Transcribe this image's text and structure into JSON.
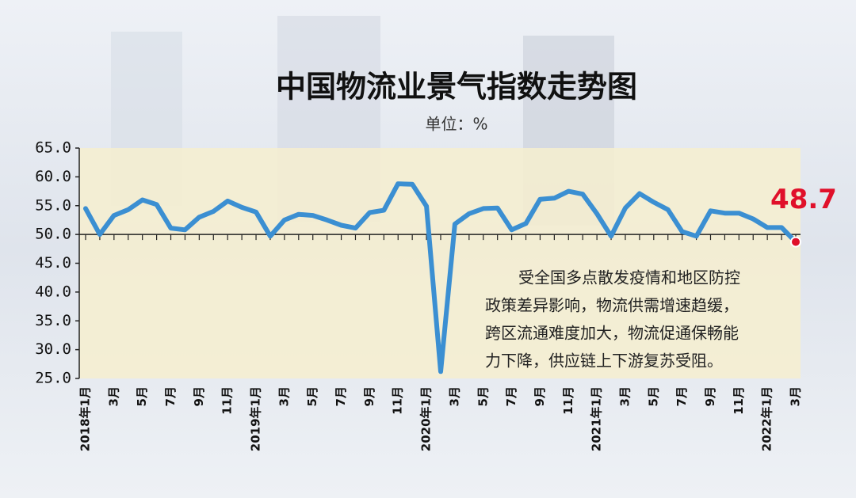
{
  "chart_data": {
    "type": "line",
    "title": "中国物流业景气指数走势图",
    "subtitle": "单位：%",
    "annotation": [
      "受全国多点散发疫情和地区防控",
      "政策差异影响，物流供需增速趋缓，",
      "跨区流通难度加大，物流促通保畅能",
      "力下降，供应链上下游复苏受阻。"
    ],
    "categories": [
      "2018年1月",
      null,
      "3月",
      null,
      "5月",
      null,
      "7月",
      null,
      "9月",
      null,
      "11月",
      null,
      "2019年1月",
      null,
      "3月",
      null,
      "5月",
      null,
      "7月",
      null,
      "9月",
      null,
      "11月",
      null,
      "2020年1月",
      null,
      "3月",
      null,
      "5月",
      null,
      "7月",
      null,
      "9月",
      null,
      "11月",
      null,
      "2021年1月",
      null,
      "3月",
      null,
      "5月",
      null,
      "7月",
      null,
      "9月",
      null,
      "11月",
      null,
      "2022年1月",
      null,
      "3月"
    ],
    "values": [
      54.5,
      50.0,
      53.3,
      54.3,
      56.0,
      55.2,
      51.1,
      50.8,
      53.0,
      54.0,
      55.8,
      54.7,
      53.9,
      49.7,
      52.5,
      53.5,
      53.3,
      52.5,
      51.6,
      51.1,
      53.8,
      54.2,
      58.8,
      58.7,
      54.9,
      26.2,
      51.8,
      53.6,
      54.5,
      54.6,
      50.8,
      51.9,
      56.1,
      56.3,
      57.5,
      57.0,
      53.6,
      49.7,
      54.6,
      57.1,
      55.6,
      54.3,
      50.5,
      49.7,
      54.1,
      53.7,
      53.7,
      52.7,
      51.2,
      51.2,
      48.7
    ],
    "color": "#3b8fd2",
    "ylim": [
      25,
      65
    ],
    "yticks": [
      {
        "value": 25,
        "label": "25.0"
      },
      {
        "value": 30,
        "label": "30.0"
      },
      {
        "value": 35,
        "label": "35.0"
      },
      {
        "value": 40,
        "label": "40.0"
      },
      {
        "value": 45,
        "label": "45.0"
      },
      {
        "value": 50,
        "label": "50.0"
      },
      {
        "value": 55,
        "label": "55.0"
      },
      {
        "value": 60,
        "label": "60.0"
      },
      {
        "value": 65,
        "label": "65.0"
      }
    ],
    "baseline": 50,
    "highlight_color": "#e0102a"
  }
}
